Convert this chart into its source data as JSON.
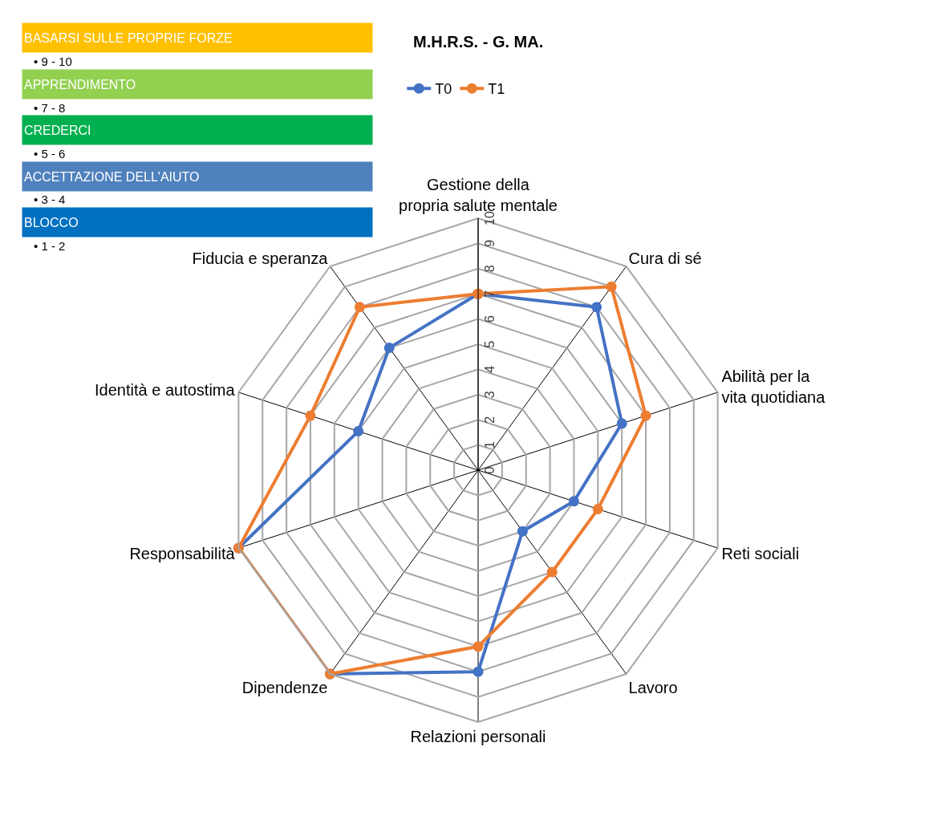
{
  "chart_data": {
    "type": "radar",
    "title": "M.H.R.S. - G. MA.",
    "categories": [
      "Gestione della propria salute mentale",
      "Cura di sé",
      "Abilità per la vita quotidiana",
      "Reti sociali",
      "Lavoro",
      "Relazioni personali",
      "Dipendenze",
      "Responsabilità",
      "Identità e autostima",
      "Fiducia e speranza"
    ],
    "series": [
      {
        "name": "T0",
        "color": "#4472c4",
        "values": [
          7,
          8,
          6,
          4,
          3,
          8,
          10,
          10,
          5,
          6
        ]
      },
      {
        "name": "T1",
        "color": "#ed7d31",
        "values": [
          7,
          9,
          7,
          5,
          5,
          7,
          10,
          10,
          7,
          8
        ]
      }
    ],
    "ylim": [
      0,
      10
    ],
    "yticks": [
      0,
      1,
      2,
      3,
      4,
      5,
      6,
      7,
      8,
      9,
      10
    ],
    "grid": true,
    "legend": "top",
    "marker": "circle",
    "line_style": "solid",
    "annotations": [
      "BASARSI SULLE PROPRIE FORZE",
      "• 9 - 10",
      "APPRENDIMENTO",
      "• 7 - 8",
      "CREDERCI",
      "• 5 - 6",
      "ACCETTAZIONE DELL'AIUTO",
      "• 3 - 4",
      "BLOCCO",
      "• 1 - 2"
    ]
  }
}
